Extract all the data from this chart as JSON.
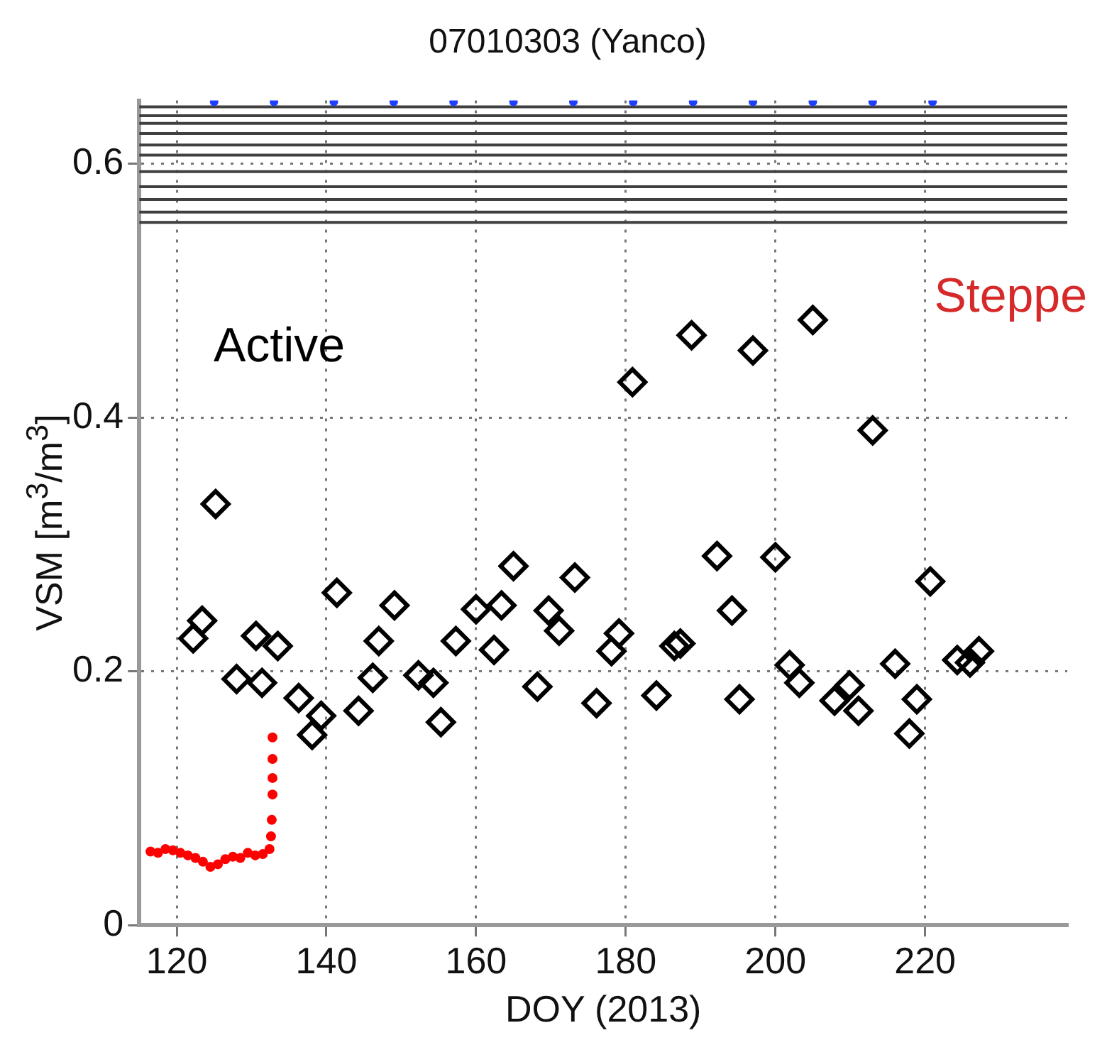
{
  "chart_data": {
    "type": "scatter",
    "title": "07010303 (Yanco)",
    "xlabel": "DOY (2013)",
    "ylabel": "VSM [m$^{3}$/m$^{3}$]",
    "annotations": [
      "Active",
      "Steppe"
    ],
    "xlim": [
      115,
      239
    ],
    "xticks": [
      120,
      140,
      160,
      180,
      200,
      220
    ],
    "ylim": [
      0,
      0.65
    ],
    "yticks": [
      0,
      0.2,
      0.4,
      0.6
    ],
    "grid": true,
    "ref_lines": [
      {
        "axis": "y",
        "value": 0.645,
        "color": "#404040"
      },
      {
        "axis": "y",
        "value": 0.638,
        "color": "#404040"
      },
      {
        "axis": "y",
        "value": 0.632,
        "color": "#404040"
      },
      {
        "axis": "y",
        "value": 0.624,
        "color": "#404040"
      },
      {
        "axis": "y",
        "value": 0.615,
        "color": "#404040"
      },
      {
        "axis": "y",
        "value": 0.607,
        "color": "#404040"
      },
      {
        "axis": "y",
        "value": 0.594,
        "color": "#404040"
      },
      {
        "axis": "y",
        "value": 0.582,
        "color": "#404040"
      },
      {
        "axis": "y",
        "value": 0.572,
        "color": "#404040"
      },
      {
        "axis": "y",
        "value": 0.562,
        "color": "#404040"
      },
      {
        "axis": "y",
        "value": 0.554,
        "color": "#404040"
      }
    ],
    "series": [
      {
        "color": "#ff0000",
        "marker": "circle",
        "x": [
          116.5,
          117.5,
          118.5,
          119.5,
          120.5,
          121.5,
          122.5,
          123.5,
          124.5,
          125.5,
          126.5,
          127.5,
          128.5,
          129.5,
          130.5,
          131.5,
          132.4,
          132.6,
          132.7,
          132.8,
          132.8,
          132.8,
          132.8
        ],
        "values": [
          0.058,
          0.057,
          0.06,
          0.059,
          0.057,
          0.055,
          0.053,
          0.05,
          0.046,
          0.048,
          0.052,
          0.054,
          0.053,
          0.057,
          0.055,
          0.056,
          0.06,
          0.07,
          0.083,
          0.103,
          0.116,
          0.131,
          0.148
        ]
      },
      {
        "color": "#000000",
        "marker": "diamond",
        "x": [
          125.2,
          123.4,
          122.2,
          130.6,
          133.5,
          128.0,
          131.4,
          136.3,
          139.3,
          138.1,
          141.4,
          144.3,
          146.2,
          147.0,
          149.1,
          152.3,
          154.3,
          155.3,
          157.3,
          160.0,
          162.4,
          163.4,
          165.0,
          169.7,
          171.1,
          168.2,
          173.2,
          176.1,
          178.1,
          179.1,
          180.9,
          184.1,
          186.5,
          187.3,
          188.8,
          192.2,
          194.2,
          195.2,
          197.0,
          200.0,
          201.9,
          203.2,
          205.0,
          207.9,
          209.9,
          211.1,
          213.0,
          216.0,
          218.9,
          217.9,
          220.7,
          224.3,
          226.0,
          227.2
        ],
        "values": [
          0.332,
          0.24,
          0.226,
          0.228,
          0.22,
          0.194,
          0.191,
          0.179,
          0.165,
          0.15,
          0.262,
          0.169,
          0.195,
          0.224,
          0.252,
          0.197,
          0.191,
          0.16,
          0.224,
          0.249,
          0.217,
          0.252,
          0.283,
          0.248,
          0.232,
          0.188,
          0.274,
          0.175,
          0.216,
          0.23,
          0.428,
          0.181,
          0.22,
          0.222,
          0.465,
          0.291,
          0.248,
          0.178,
          0.453,
          0.29,
          0.205,
          0.191,
          0.477,
          0.177,
          0.189,
          0.169,
          0.39,
          0.206,
          0.178,
          0.151,
          0.271,
          0.209,
          0.207,
          0.216
        ]
      },
      {
        "color": "#1f3fff",
        "marker": "circle",
        "x": [
          125,
          133,
          141,
          149,
          157,
          165,
          173,
          181,
          189,
          197,
          205,
          213,
          221
        ],
        "values": [
          0.649,
          0.649,
          0.649,
          0.649,
          0.649,
          0.649,
          0.649,
          0.649,
          0.649,
          0.649,
          0.649,
          0.649,
          0.649
        ]
      }
    ]
  }
}
